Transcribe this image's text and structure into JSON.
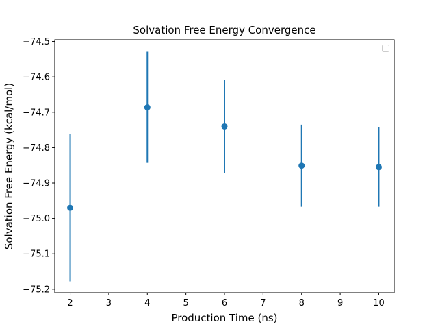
{
  "chart_data": {
    "type": "scatter",
    "title": "Solvation Free Energy Convergence",
    "xlabel": "Production Time (ns)",
    "ylabel": "Solvation Free Energy (kcal/mol)",
    "xlim": [
      1.6,
      10.4
    ],
    "ylim": [
      -75.21,
      -74.495
    ],
    "x_ticks": [
      2,
      3,
      4,
      5,
      6,
      7,
      8,
      9,
      10
    ],
    "y_ticks": [
      -75.2,
      -75.1,
      -75.0,
      -74.9,
      -74.8,
      -74.7,
      -74.6,
      -74.5
    ],
    "grid": false,
    "legend": {
      "placement": "top-right",
      "entries": []
    },
    "series": [
      {
        "color": "#1f77b4",
        "x": [
          2,
          4,
          6,
          8,
          10
        ],
        "y": [
          -74.97,
          -74.686,
          -74.74,
          -74.851,
          -74.855
        ],
        "yerr": [
          0.208,
          0.157,
          0.132,
          0.116,
          0.112
        ]
      }
    ]
  }
}
